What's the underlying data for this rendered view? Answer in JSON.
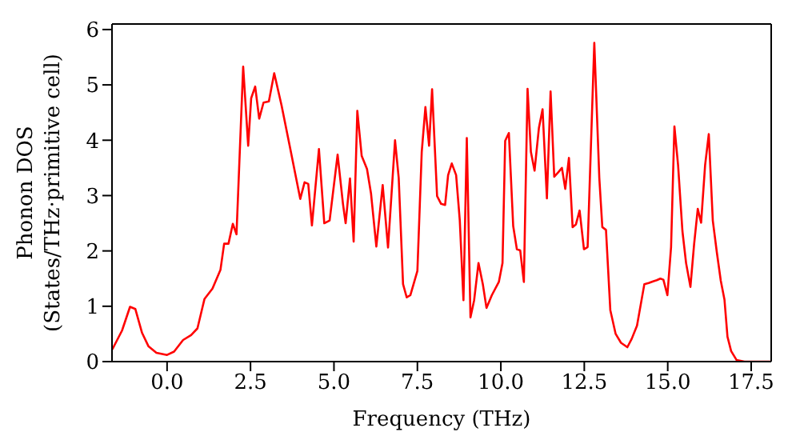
{
  "chart_data": {
    "type": "line",
    "xlabel": "Frequency (THz)",
    "ylabel": "Phonon DOS\n(States/THz·primitive cell)",
    "xlim": [
      -1.65,
      18.1
    ],
    "ylim": [
      0,
      6.1
    ],
    "xticks": [
      {
        "value": 0,
        "label": "0.0"
      },
      {
        "value": 2.5,
        "label": "2.5"
      },
      {
        "value": 5,
        "label": "5.0"
      },
      {
        "value": 7.5,
        "label": "7.5"
      },
      {
        "value": 10,
        "label": "10.0"
      },
      {
        "value": 12.5,
        "label": "12.5"
      },
      {
        "value": 15,
        "label": "15.0"
      },
      {
        "value": 17.5,
        "label": "17.5"
      }
    ],
    "yticks": [
      0,
      1,
      2,
      3,
      4,
      5,
      6
    ],
    "grid": false,
    "legend": false,
    "marker": "none",
    "line_style": "solid",
    "series": [
      {
        "color": "#ff0000",
        "x": [
          -1.64,
          -1.35,
          -1.11,
          -0.95,
          -0.75,
          -0.56,
          -0.32,
          0.0,
          0.21,
          0.48,
          0.72,
          0.91,
          1.12,
          1.36,
          1.6,
          1.71,
          1.84,
          1.97,
          2.08,
          2.28,
          2.43,
          2.52,
          2.64,
          2.76,
          2.89,
          3.05,
          3.21,
          3.43,
          3.67,
          3.99,
          4.12,
          4.23,
          4.34,
          4.55,
          4.71,
          4.87,
          5.11,
          5.27,
          5.35,
          5.48,
          5.59,
          5.7,
          5.83,
          5.99,
          6.11,
          6.27,
          6.46,
          6.62,
          6.83,
          6.94,
          7.07,
          7.18,
          7.29,
          7.5,
          7.63,
          7.74,
          7.85,
          7.94,
          8.09,
          8.21,
          8.33,
          8.42,
          8.53,
          8.66,
          8.77,
          8.88,
          8.98,
          9.09,
          9.2,
          9.33,
          9.46,
          9.57,
          9.73,
          9.94,
          10.05,
          10.13,
          10.24,
          10.37,
          10.48,
          10.58,
          10.69,
          10.8,
          10.9,
          11.01,
          11.14,
          11.25,
          11.38,
          11.49,
          11.6,
          11.72,
          11.83,
          11.93,
          12.04,
          12.15,
          12.25,
          12.36,
          12.49,
          12.6,
          12.8,
          12.95,
          13.04,
          13.15,
          13.28,
          13.44,
          13.6,
          13.79,
          13.92,
          14.08,
          14.3,
          14.43,
          14.56,
          14.67,
          14.78,
          14.87,
          14.99,
          15.1,
          15.2,
          15.31,
          15.44,
          15.55,
          15.68,
          15.79,
          15.9,
          16.0,
          16.12,
          16.23,
          16.35,
          16.47,
          16.59,
          16.7,
          16.79,
          16.9,
          17.06,
          17.3,
          18.1
        ],
        "values": [
          0.22,
          0.56,
          0.99,
          0.95,
          0.52,
          0.28,
          0.16,
          0.12,
          0.18,
          0.39,
          0.48,
          0.6,
          1.13,
          1.32,
          1.66,
          2.13,
          2.13,
          2.49,
          2.3,
          5.33,
          3.9,
          4.76,
          4.97,
          4.39,
          4.68,
          4.7,
          5.21,
          4.63,
          3.91,
          2.94,
          3.24,
          3.21,
          2.46,
          3.84,
          2.5,
          2.55,
          3.74,
          2.85,
          2.5,
          3.31,
          2.17,
          4.53,
          3.72,
          3.48,
          3.04,
          2.08,
          3.19,
          2.06,
          4.0,
          3.32,
          1.4,
          1.16,
          1.2,
          1.64,
          3.79,
          4.6,
          3.9,
          4.92,
          2.99,
          2.85,
          2.83,
          3.37,
          3.58,
          3.37,
          2.55,
          1.11,
          4.04,
          0.8,
          1.11,
          1.78,
          1.4,
          0.97,
          1.2,
          1.44,
          1.78,
          3.99,
          4.13,
          2.45,
          2.03,
          2.01,
          1.44,
          4.93,
          3.79,
          3.45,
          4.22,
          4.56,
          2.95,
          4.88,
          3.34,
          3.42,
          3.5,
          3.12,
          3.68,
          2.43,
          2.48,
          2.73,
          2.03,
          2.07,
          5.76,
          3.32,
          2.43,
          2.38,
          0.93,
          0.5,
          0.34,
          0.26,
          0.41,
          0.65,
          1.4,
          1.42,
          1.45,
          1.47,
          1.5,
          1.48,
          1.2,
          2.07,
          4.25,
          3.55,
          2.36,
          1.78,
          1.35,
          2.12,
          2.76,
          2.51,
          3.55,
          4.11,
          2.55,
          1.98,
          1.46,
          1.12,
          0.45,
          0.19,
          0.03,
          0.0,
          0.0
        ]
      }
    ]
  }
}
